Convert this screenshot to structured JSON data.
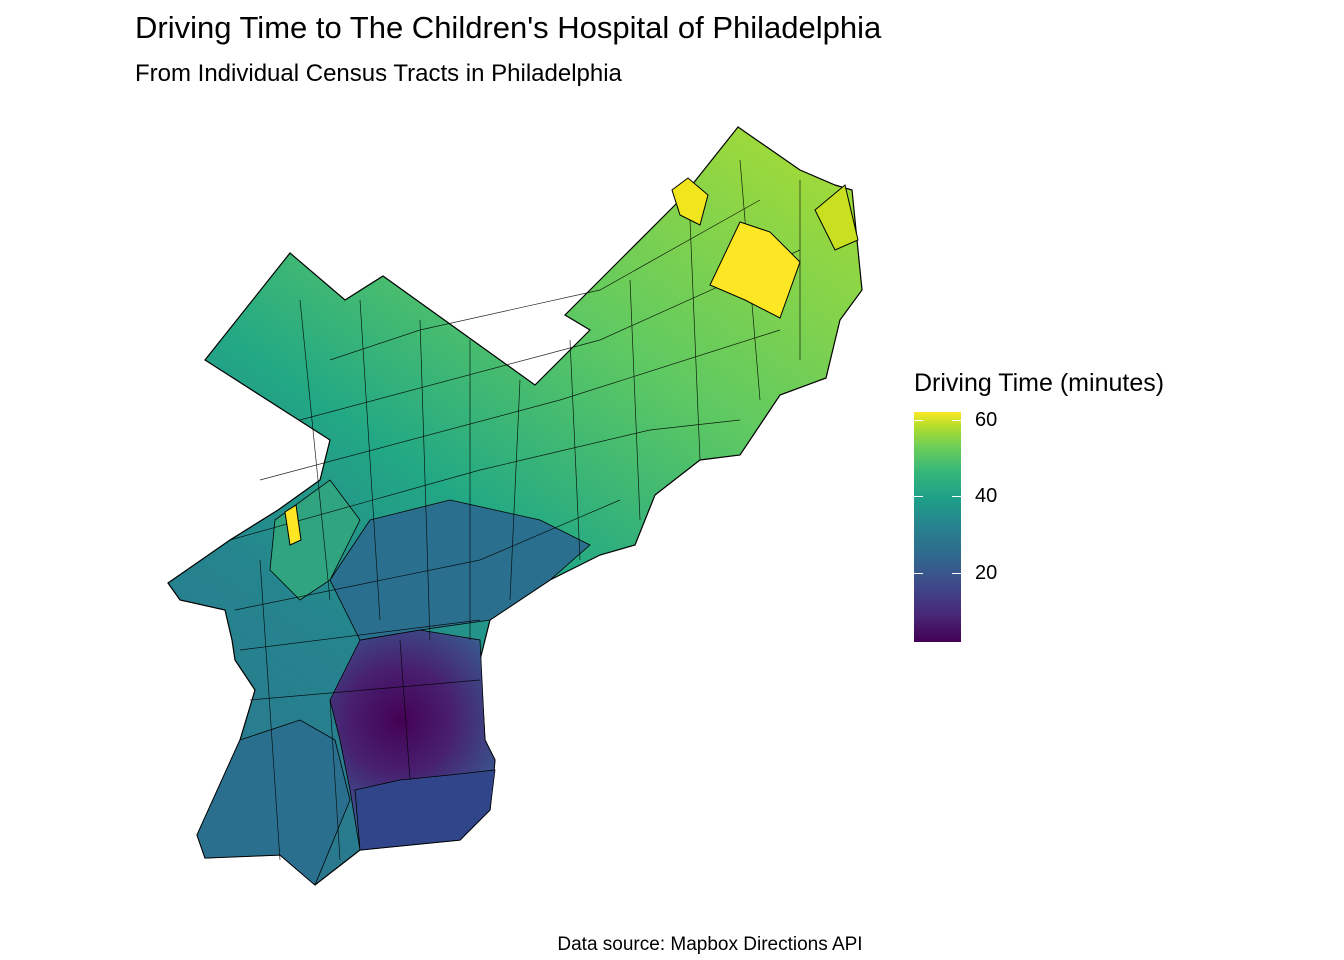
{
  "title": "Driving Time to The Children's Hospital of Philadelphia",
  "subtitle": "From Individual Census Tracts in Philadelphia",
  "caption": "Data source: Mapbox Directions API",
  "legend": {
    "title": "Driving Time (minutes)",
    "min": 2,
    "max": 62,
    "ticks": [
      {
        "value": 20,
        "label": "20"
      },
      {
        "value": 40,
        "label": "40"
      },
      {
        "value": 60,
        "label": "60"
      }
    ]
  },
  "colors": {
    "border": "#000000",
    "viridis": [
      "#440154",
      "#482878",
      "#3e4a89",
      "#31688e",
      "#26828e",
      "#1f9e89",
      "#35b779",
      "#6ece58",
      "#b5de2b",
      "#fde725"
    ]
  },
  "map": {
    "region": "Philadelphia",
    "fill": "driving time per census tract",
    "highlight_regions": [
      {
        "name": "northeast-tract-peak",
        "minutes": 62
      },
      {
        "name": "northwest-tract-peak",
        "minutes": 61
      },
      {
        "name": "center-city-tracts",
        "minutes": 3
      }
    ]
  }
}
